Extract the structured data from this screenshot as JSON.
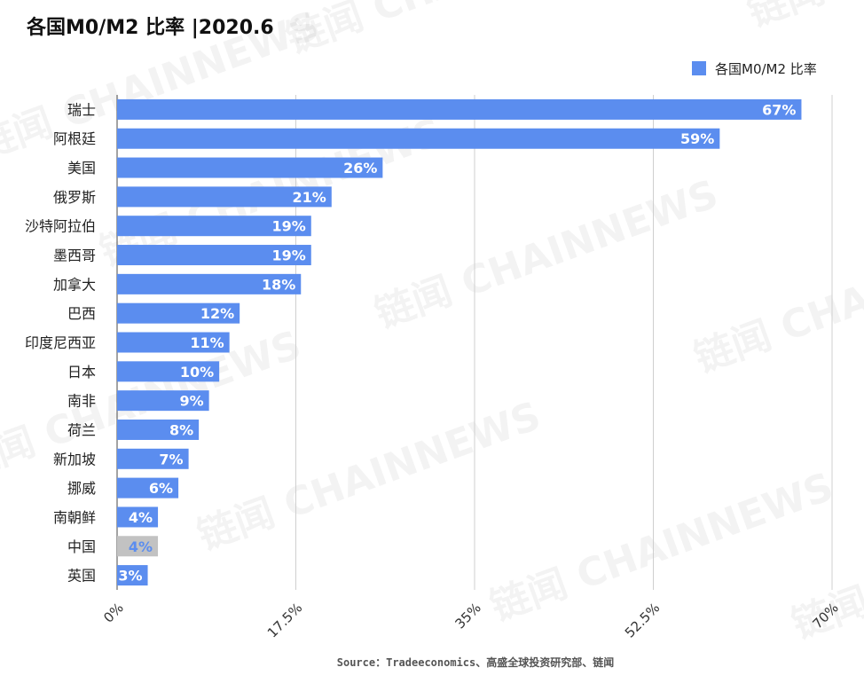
{
  "chart_data": {
    "type": "bar",
    "orientation": "horizontal",
    "title": "各国M0/M2 比率 |2020.6",
    "legend": {
      "position": "top-right",
      "entries": [
        "各国M0/M2 比率"
      ]
    },
    "series": [
      {
        "name": "各国M0/M2 比率",
        "color": "#5b8def",
        "values": [
          67,
          59,
          26,
          21,
          19,
          19,
          18,
          12,
          11,
          10,
          9,
          8,
          7,
          6,
          4,
          4,
          3
        ]
      }
    ],
    "categories": [
      "瑞士",
      "阿根廷",
      "美国",
      "俄罗斯",
      "沙特阿拉伯",
      "墨西哥",
      "加拿大",
      "巴西",
      "印度尼西亚",
      "日本",
      "南非",
      "荷兰",
      "新加坡",
      "挪威",
      "南朝鲜",
      "中国",
      "英国"
    ],
    "value_labels": [
      "67%",
      "59%",
      "26%",
      "21%",
      "19%",
      "19%",
      "18%",
      "12%",
      "11%",
      "10%",
      "9%",
      "8%",
      "7%",
      "6%",
      "4%",
      "4%",
      "3%"
    ],
    "highlight": {
      "category": "中国",
      "bar_color": "#c2c2c2",
      "label_color": "#5b8def"
    },
    "xlim": [
      0,
      70
    ],
    "xticks": [
      0,
      17.5,
      35,
      52.5,
      70
    ],
    "xtick_labels": [
      "0%",
      "17.5%",
      "35%",
      "52.5%",
      "70%"
    ],
    "grid": "vertical",
    "xlabel": "",
    "ylabel": "",
    "source": "Source：Tradeeconomics、高盛全球投资研究部、链闻",
    "watermark": "链闻 CHAINNEWS"
  }
}
